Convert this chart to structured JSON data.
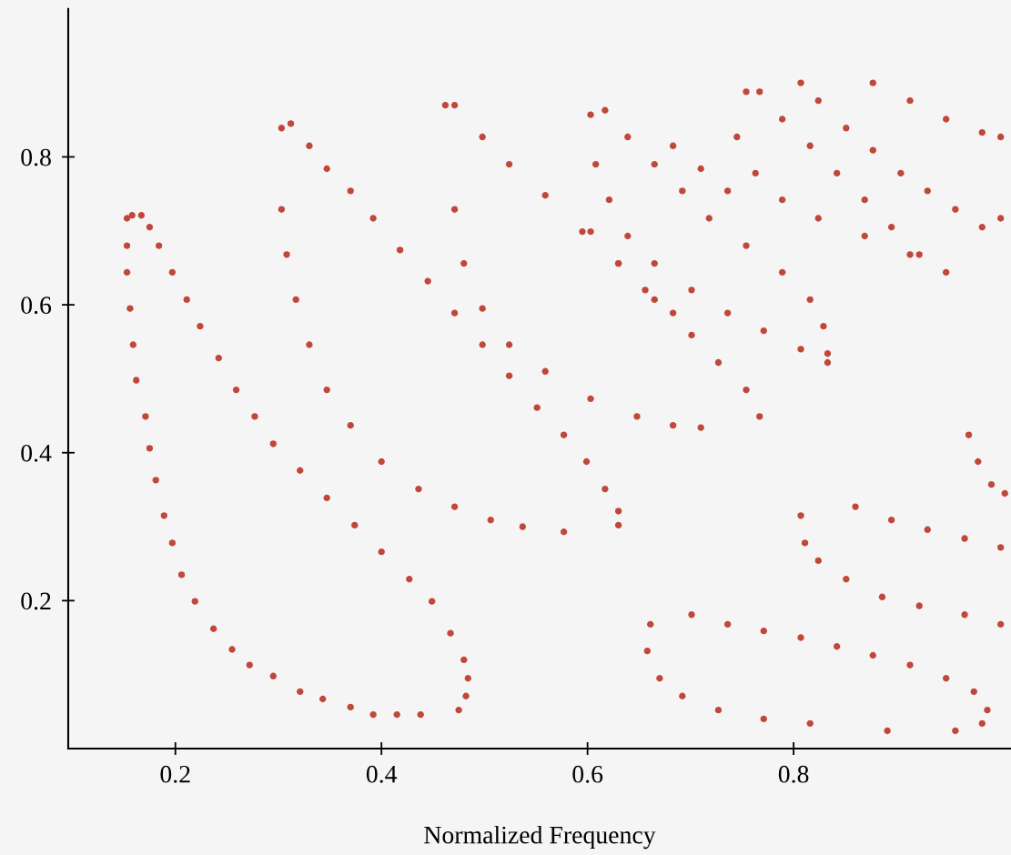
{
  "chart_data": {
    "type": "scatter",
    "xlabel": "Normalized Frequency",
    "xlim": [
      0.096,
      1.011
    ],
    "ylim": [
      0,
      1.0
    ],
    "xticks": [
      0.2,
      0.4,
      0.6,
      0.8
    ],
    "yticks": [
      0.2,
      0.4,
      0.6,
      0.8
    ],
    "grid": false,
    "marker": "circle",
    "series": [
      {
        "color": "#c0473a",
        "x": [
          0.438,
          0.415,
          0.392,
          0.37,
          0.343,
          0.321,
          0.295,
          0.272,
          0.255,
          0.237,
          0.219,
          0.206,
          0.197,
          0.189,
          0.181,
          0.175,
          0.171,
          0.162,
          0.159,
          0.156,
          0.153,
          0.153,
          0.153,
          0.158,
          0.167,
          0.175,
          0.184,
          0.197,
          0.211,
          0.224,
          0.242,
          0.259,
          0.277,
          0.295,
          0.321,
          0.347,
          0.374,
          0.4,
          0.427,
          0.449,
          0.467,
          0.48,
          0.484,
          0.482,
          0.475,
          0.303,
          0.303,
          0.308,
          0.317,
          0.33,
          0.347,
          0.37,
          0.4,
          0.436,
          0.471,
          0.506,
          0.537,
          0.577,
          0.312,
          0.33,
          0.347,
          0.37,
          0.392,
          0.418,
          0.445,
          0.471,
          0.498,
          0.524,
          0.551,
          0.577,
          0.599,
          0.617,
          0.63,
          0.63,
          0.462,
          0.471,
          0.48,
          0.498,
          0.524,
          0.559,
          0.603,
          0.648,
          0.683,
          0.71,
          0.471,
          0.498,
          0.524,
          0.559,
          0.595,
          0.63,
          0.665,
          0.701,
          0.727,
          0.754,
          0.767,
          0.603,
          0.608,
          0.621,
          0.639,
          0.665,
          0.701,
          0.736,
          0.771,
          0.807,
          0.833,
          0.617,
          0.639,
          0.665,
          0.692,
          0.718,
          0.754,
          0.789,
          0.816,
          0.829,
          0.833,
          0.603,
          0.63,
          0.656,
          0.683,
          0.683,
          0.71,
          0.736,
          0.745,
          0.763,
          0.789,
          0.824,
          0.869,
          0.913,
          0.948,
          0.754,
          0.767,
          0.789,
          0.816,
          0.842,
          0.869,
          0.895,
          0.922,
          0.807,
          0.824,
          0.851,
          0.877,
          0.904,
          0.93,
          0.957,
          0.983,
          1.001,
          0.877,
          0.913,
          0.948,
          0.983,
          1.001,
          0.807,
          0.811,
          0.824,
          0.851,
          0.886,
          0.922,
          0.966,
          1.001,
          0.86,
          0.895,
          0.93,
          0.966,
          1.001,
          0.661,
          0.658,
          0.67,
          0.692,
          0.727,
          0.771,
          0.816,
          0.701,
          0.736,
          0.771,
          0.807,
          0.842,
          0.877,
          0.913,
          0.948,
          0.975,
          0.988,
          0.983,
          0.957,
          0.891,
          0.97,
          0.979,
          0.992,
          1.005
        ],
        "values": [
          0.046,
          0.046,
          0.046,
          0.056,
          0.067,
          0.077,
          0.098,
          0.113,
          0.134,
          0.162,
          0.199,
          0.235,
          0.278,
          0.315,
          0.363,
          0.406,
          0.449,
          0.498,
          0.546,
          0.595,
          0.644,
          0.68,
          0.717,
          0.721,
          0.721,
          0.705,
          0.68,
          0.644,
          0.607,
          0.571,
          0.528,
          0.485,
          0.449,
          0.412,
          0.376,
          0.339,
          0.302,
          0.266,
          0.229,
          0.199,
          0.156,
          0.12,
          0.095,
          0.071,
          0.052,
          0.839,
          0.729,
          0.668,
          0.607,
          0.546,
          0.485,
          0.437,
          0.388,
          0.351,
          0.327,
          0.309,
          0.3,
          0.293,
          0.845,
          0.815,
          0.784,
          0.754,
          0.717,
          0.674,
          0.632,
          0.589,
          0.546,
          0.504,
          0.461,
          0.424,
          0.388,
          0.351,
          0.321,
          0.302,
          0.87,
          0.729,
          0.656,
          0.595,
          0.546,
          0.51,
          0.473,
          0.449,
          0.437,
          0.434,
          0.87,
          0.827,
          0.79,
          0.748,
          0.699,
          0.656,
          0.607,
          0.559,
          0.522,
          0.485,
          0.449,
          0.857,
          0.79,
          0.742,
          0.693,
          0.656,
          0.62,
          0.589,
          0.565,
          0.54,
          0.522,
          0.863,
          0.827,
          0.79,
          0.754,
          0.717,
          0.68,
          0.644,
          0.607,
          0.571,
          0.534,
          0.699,
          0.656,
          0.62,
          0.589,
          0.815,
          0.784,
          0.754,
          0.827,
          0.778,
          0.742,
          0.717,
          0.693,
          0.668,
          0.644,
          0.888,
          0.888,
          0.851,
          0.815,
          0.778,
          0.742,
          0.705,
          0.668,
          0.9,
          0.876,
          0.839,
          0.809,
          0.778,
          0.754,
          0.729,
          0.705,
          0.717,
          0.9,
          0.876,
          0.851,
          0.833,
          0.827,
          0.315,
          0.278,
          0.254,
          0.229,
          0.205,
          0.193,
          0.181,
          0.168,
          0.327,
          0.309,
          0.296,
          0.284,
          0.272,
          0.168,
          0.132,
          0.095,
          0.071,
          0.052,
          0.04,
          0.034,
          0.181,
          0.168,
          0.159,
          0.15,
          0.138,
          0.126,
          0.113,
          0.095,
          0.077,
          0.052,
          0.034,
          0.024,
          0.024,
          0.424,
          0.388,
          0.357,
          0.345
        ]
      }
    ]
  }
}
